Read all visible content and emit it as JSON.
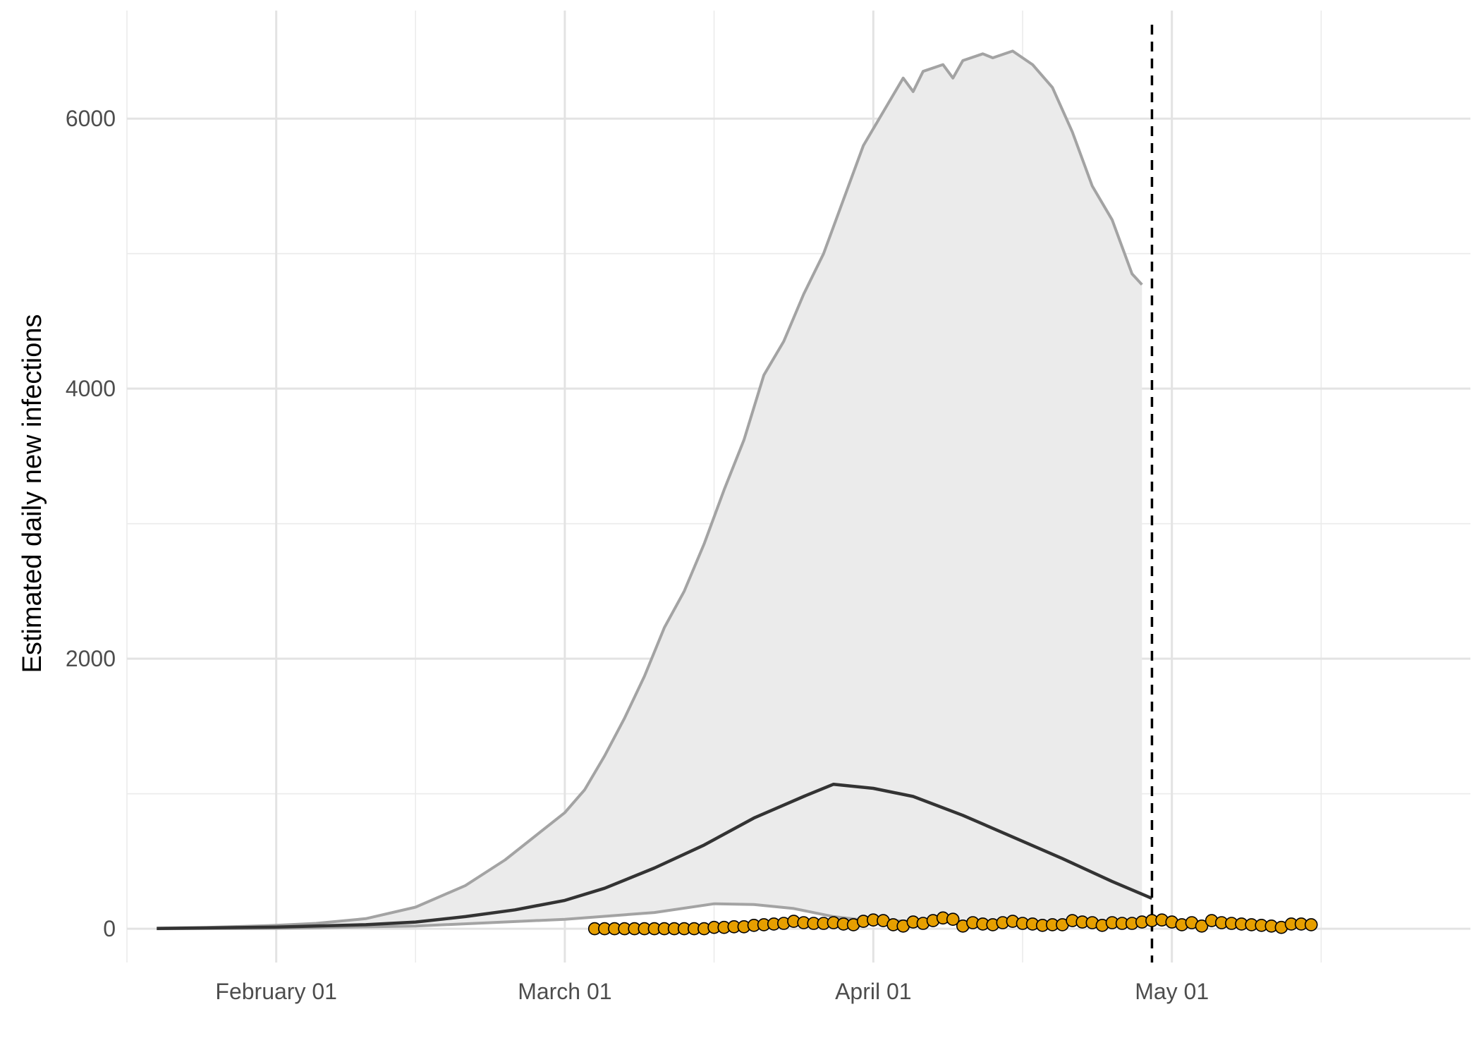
{
  "chart_data": {
    "type": "area",
    "title": "",
    "xlabel": "",
    "ylabel": "Estimated daily new infections",
    "x_range": [
      "2020-01-17",
      "2020-05-31"
    ],
    "ylim": [
      -250,
      6800
    ],
    "y_ticks": [
      0,
      2000,
      4000,
      6000
    ],
    "y_tick_labels": [
      "0",
      "2000",
      "4000",
      "6000"
    ],
    "x_ticks": [
      "2020-02-01",
      "2020-03-01",
      "2020-04-01",
      "2020-05-01"
    ],
    "x_tick_labels": [
      "February 01",
      "March 01",
      "April 01",
      "May 01"
    ],
    "x_minor_ticks": [
      "2020-01-17",
      "2020-02-15",
      "2020-03-16",
      "2020-04-16",
      "2020-05-16"
    ],
    "grid": true,
    "vline": {
      "x": "2020-04-29",
      "style": "dashed",
      "color": "#000000"
    },
    "band_upper": [
      [
        "2020-01-20",
        5
      ],
      [
        "2020-01-25",
        10
      ],
      [
        "2020-02-01",
        25
      ],
      [
        "2020-02-05",
        40
      ],
      [
        "2020-02-10",
        75
      ],
      [
        "2020-02-15",
        160
      ],
      [
        "2020-02-20",
        320
      ],
      [
        "2020-02-24",
        510
      ],
      [
        "2020-03-01",
        860
      ],
      [
        "2020-03-03",
        1030
      ],
      [
        "2020-03-05",
        1280
      ],
      [
        "2020-03-07",
        1560
      ],
      [
        "2020-03-09",
        1870
      ],
      [
        "2020-03-11",
        2230
      ],
      [
        "2020-03-13",
        2500
      ],
      [
        "2020-03-15",
        2850
      ],
      [
        "2020-03-17",
        3250
      ],
      [
        "2020-03-19",
        3620
      ],
      [
        "2020-03-21",
        4100
      ],
      [
        "2020-03-23",
        4350
      ],
      [
        "2020-03-25",
        4700
      ],
      [
        "2020-03-27",
        5000
      ],
      [
        "2020-03-29",
        5400
      ],
      [
        "2020-03-31",
        5800
      ],
      [
        "2020-04-02",
        6050
      ],
      [
        "2020-04-04",
        6300
      ],
      [
        "2020-04-05",
        6200
      ],
      [
        "2020-04-06",
        6350
      ],
      [
        "2020-04-08",
        6400
      ],
      [
        "2020-04-09",
        6300
      ],
      [
        "2020-04-10",
        6430
      ],
      [
        "2020-04-12",
        6480
      ],
      [
        "2020-04-13",
        6450
      ],
      [
        "2020-04-15",
        6500
      ],
      [
        "2020-04-17",
        6400
      ],
      [
        "2020-04-19",
        6230
      ],
      [
        "2020-04-21",
        5900
      ],
      [
        "2020-04-23",
        5500
      ],
      [
        "2020-04-25",
        5250
      ],
      [
        "2020-04-27",
        4850
      ],
      [
        "2020-04-28",
        4770
      ]
    ],
    "band_lower": [
      [
        "2020-01-20",
        0
      ],
      [
        "2020-02-01",
        3
      ],
      [
        "2020-02-15",
        20
      ],
      [
        "2020-03-01",
        70
      ],
      [
        "2020-03-10",
        120
      ],
      [
        "2020-03-16",
        185
      ],
      [
        "2020-03-20",
        180
      ],
      [
        "2020-03-24",
        150
      ],
      [
        "2020-03-28",
        90
      ],
      [
        "2020-03-31",
        65
      ],
      [
        "2020-04-05",
        55
      ],
      [
        "2020-04-10",
        50
      ],
      [
        "2020-04-20",
        40
      ],
      [
        "2020-04-28",
        30
      ]
    ],
    "series": [
      {
        "name": "",
        "color": "#333333",
        "points": [
          [
            "2020-01-20",
            2
          ],
          [
            "2020-02-01",
            12
          ],
          [
            "2020-02-10",
            30
          ],
          [
            "2020-02-15",
            50
          ],
          [
            "2020-02-20",
            90
          ],
          [
            "2020-02-25",
            140
          ],
          [
            "2020-03-01",
            210
          ],
          [
            "2020-03-05",
            300
          ],
          [
            "2020-03-10",
            450
          ],
          [
            "2020-03-15",
            620
          ],
          [
            "2020-03-20",
            820
          ],
          [
            "2020-03-25",
            980
          ],
          [
            "2020-03-28",
            1070
          ],
          [
            "2020-04-01",
            1040
          ],
          [
            "2020-04-05",
            980
          ],
          [
            "2020-04-10",
            840
          ],
          [
            "2020-04-15",
            680
          ],
          [
            "2020-04-20",
            520
          ],
          [
            "2020-04-25",
            350
          ],
          [
            "2020-04-29",
            225
          ]
        ]
      }
    ],
    "points": {
      "color": "#E69F00",
      "stroke": "#000000",
      "data": [
        [
          "2020-03-04",
          0
        ],
        [
          "2020-03-05",
          0
        ],
        [
          "2020-03-06",
          0
        ],
        [
          "2020-03-07",
          0
        ],
        [
          "2020-03-08",
          0
        ],
        [
          "2020-03-09",
          0
        ],
        [
          "2020-03-10",
          0
        ],
        [
          "2020-03-11",
          0
        ],
        [
          "2020-03-12",
          0
        ],
        [
          "2020-03-13",
          0
        ],
        [
          "2020-03-14",
          0
        ],
        [
          "2020-03-15",
          0
        ],
        [
          "2020-03-16",
          10
        ],
        [
          "2020-03-17",
          10
        ],
        [
          "2020-03-18",
          15
        ],
        [
          "2020-03-19",
          15
        ],
        [
          "2020-03-20",
          25
        ],
        [
          "2020-03-21",
          30
        ],
        [
          "2020-03-22",
          35
        ],
        [
          "2020-03-23",
          40
        ],
        [
          "2020-03-24",
          55
        ],
        [
          "2020-03-25",
          45
        ],
        [
          "2020-03-26",
          40
        ],
        [
          "2020-03-27",
          40
        ],
        [
          "2020-03-28",
          45
        ],
        [
          "2020-03-29",
          35
        ],
        [
          "2020-03-30",
          30
        ],
        [
          "2020-03-31",
          55
        ],
        [
          "2020-04-01",
          65
        ],
        [
          "2020-04-02",
          60
        ],
        [
          "2020-04-03",
          30
        ],
        [
          "2020-04-04",
          20
        ],
        [
          "2020-04-05",
          50
        ],
        [
          "2020-04-06",
          40
        ],
        [
          "2020-04-07",
          60
        ],
        [
          "2020-04-08",
          80
        ],
        [
          "2020-04-09",
          70
        ],
        [
          "2020-04-10",
          20
        ],
        [
          "2020-04-11",
          45
        ],
        [
          "2020-04-12",
          35
        ],
        [
          "2020-04-13",
          30
        ],
        [
          "2020-04-14",
          45
        ],
        [
          "2020-04-15",
          55
        ],
        [
          "2020-04-16",
          40
        ],
        [
          "2020-04-17",
          35
        ],
        [
          "2020-04-18",
          25
        ],
        [
          "2020-04-19",
          30
        ],
        [
          "2020-04-20",
          30
        ],
        [
          "2020-04-21",
          60
        ],
        [
          "2020-04-22",
          50
        ],
        [
          "2020-04-23",
          45
        ],
        [
          "2020-04-24",
          25
        ],
        [
          "2020-04-25",
          45
        ],
        [
          "2020-04-26",
          40
        ],
        [
          "2020-04-27",
          40
        ],
        [
          "2020-04-28",
          50
        ],
        [
          "2020-04-29",
          60
        ],
        [
          "2020-04-30",
          65
        ],
        [
          "2020-05-01",
          50
        ],
        [
          "2020-05-02",
          30
        ],
        [
          "2020-05-03",
          45
        ],
        [
          "2020-05-04",
          20
        ],
        [
          "2020-05-05",
          60
        ],
        [
          "2020-05-06",
          45
        ],
        [
          "2020-05-07",
          40
        ],
        [
          "2020-05-08",
          35
        ],
        [
          "2020-05-09",
          30
        ],
        [
          "2020-05-10",
          25
        ],
        [
          "2020-05-11",
          20
        ],
        [
          "2020-05-12",
          10
        ],
        [
          "2020-05-13",
          35
        ],
        [
          "2020-05-14",
          35
        ],
        [
          "2020-05-15",
          30
        ]
      ]
    }
  }
}
